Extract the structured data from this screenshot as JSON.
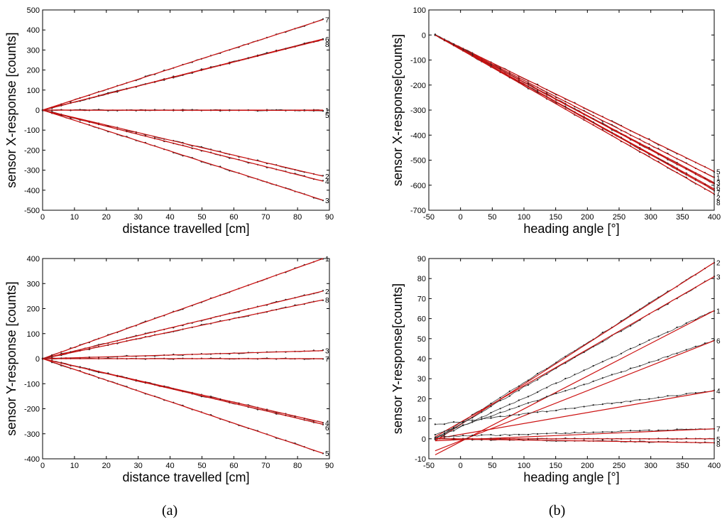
{
  "panel_labels": {
    "a": "(a)",
    "b": "(b)"
  },
  "chart_data": [
    {
      "id": "ax",
      "type": "line",
      "xlabel": "distance travelled [cm]",
      "ylabel": "sensor X-response [counts]",
      "xlim": [
        0,
        90
      ],
      "ylim": [
        -500,
        500
      ],
      "xticks": [
        0,
        10,
        20,
        30,
        40,
        50,
        60,
        70,
        80,
        90
      ],
      "yticks": [
        -500,
        -400,
        -300,
        -200,
        -100,
        0,
        100,
        200,
        300,
        400,
        500
      ],
      "x_start": 0,
      "x_end": 88,
      "series": [
        {
          "name": "7",
          "start": 0,
          "end": 452,
          "meas_start": 0
        },
        {
          "name": "6",
          "start": 0,
          "end": 355,
          "meas_start": 0
        },
        {
          "name": "8",
          "start": 0,
          "end": 352,
          "meas_start": 0
        },
        {
          "name": "1",
          "start": 0,
          "end": 0,
          "meas_start": 0
        },
        {
          "name": "5",
          "start": 0,
          "end": -2,
          "meas_start": 0
        },
        {
          "name": "2",
          "start": 0,
          "end": -330,
          "meas_start": 0
        },
        {
          "name": "4",
          "start": 0,
          "end": -355,
          "meas_start": 0
        },
        {
          "name": "3",
          "start": 0,
          "end": -450,
          "meas_start": 0
        }
      ]
    },
    {
      "id": "bx",
      "type": "line",
      "xlabel": "heading angle [°]",
      "ylabel": "sensor X-response[counts]",
      "xlim": [
        -50,
        400
      ],
      "ylim": [
        -700,
        100
      ],
      "xticks": [
        -50,
        0,
        50,
        100,
        150,
        200,
        250,
        300,
        350,
        400
      ],
      "yticks": [
        -700,
        -600,
        -500,
        -400,
        -300,
        -200,
        -100,
        0,
        100
      ],
      "x_start": -40,
      "x_end": 400,
      "series": [
        {
          "name": "5",
          "start": 0,
          "end": -545,
          "meas_start": 0
        },
        {
          "name": "1",
          "start": 0,
          "end": -570,
          "meas_start": 0
        },
        {
          "name": "3",
          "start": 0,
          "end": -590,
          "meas_start": 0
        },
        {
          "name": "6",
          "start": 0,
          "end": -595,
          "meas_start": 0
        },
        {
          "name": "7",
          "start": 0,
          "end": -615,
          "meas_start": 0
        },
        {
          "name": "2",
          "start": 0,
          "end": -620,
          "meas_start": 0
        },
        {
          "name": "8",
          "start": 0,
          "end": -635,
          "meas_start": 0
        }
      ]
    },
    {
      "id": "ay",
      "type": "line",
      "xlabel": "distance travelled [cm]",
      "ylabel": "sensor Y-response [counts]",
      "xlim": [
        0,
        90
      ],
      "ylim": [
        -400,
        400
      ],
      "xticks": [
        0,
        10,
        20,
        30,
        40,
        50,
        60,
        70,
        80,
        90
      ],
      "yticks": [
        -400,
        -300,
        -200,
        -100,
        0,
        100,
        200,
        300,
        400
      ],
      "x_start": 0,
      "x_end": 88,
      "series": [
        {
          "name": "1",
          "start": 0,
          "end": 400,
          "meas_start": 0
        },
        {
          "name": "2",
          "start": 0,
          "end": 270,
          "meas_start": 0
        },
        {
          "name": "8",
          "start": 0,
          "end": 235,
          "meas_start": 0
        },
        {
          "name": "3",
          "start": 0,
          "end": 32,
          "meas_start": 0
        },
        {
          "name": "7",
          "start": 0,
          "end": 0,
          "meas_start": 0
        },
        {
          "name": "4",
          "start": 0,
          "end": -255,
          "meas_start": 0
        },
        {
          "name": "6",
          "start": 0,
          "end": -262,
          "meas_start": 0
        },
        {
          "name": "5",
          "start": 0,
          "end": -378,
          "meas_start": 0
        }
      ]
    },
    {
      "id": "by",
      "type": "line",
      "xlabel": "heading angle [°]",
      "ylabel": "sensor Y-response[counts]",
      "xlim": [
        -50,
        400
      ],
      "ylim": [
        -10,
        90
      ],
      "xticks": [
        -50,
        0,
        50,
        100,
        150,
        200,
        250,
        300,
        350,
        400
      ],
      "yticks": [
        -10,
        0,
        10,
        20,
        30,
        40,
        50,
        60,
        70,
        80,
        90
      ],
      "x_start": -40,
      "x_end": 400,
      "series": [
        {
          "name": "2",
          "start": -1,
          "end": 88,
          "meas_start": 0
        },
        {
          "name": "3",
          "start": 1,
          "end": 81,
          "meas_start": 0
        },
        {
          "name": "1",
          "start": -8,
          "end": 64,
          "meas_start": 0
        },
        {
          "name": "6",
          "start": -6,
          "end": 49,
          "meas_start": 2
        },
        {
          "name": "4",
          "start": 0,
          "end": 24,
          "meas_start": 7
        },
        {
          "name": "7",
          "start": -1,
          "end": 5,
          "meas_start": 1
        },
        {
          "name": "5",
          "start": 0,
          "end": 0,
          "meas_start": 0
        },
        {
          "name": "8",
          "start": 0,
          "end": -2,
          "meas_start": 0
        }
      ]
    }
  ]
}
